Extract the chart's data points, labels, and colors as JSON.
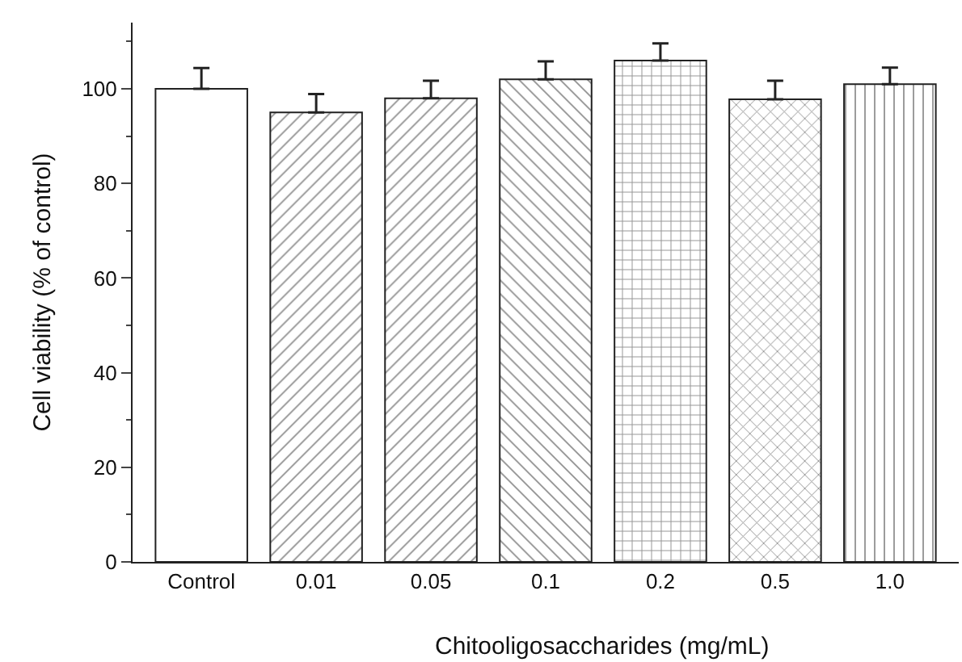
{
  "chart_data": {
    "type": "bar",
    "categories": [
      "Control",
      "0.01",
      "0.05",
      "0.1",
      "0.2",
      "0.5",
      "1.0"
    ],
    "values": [
      100,
      95,
      98,
      102,
      106,
      97.8,
      101
    ],
    "errors": [
      [
        100,
        104.4
      ],
      [
        95,
        98.9
      ],
      [
        98,
        101.7
      ],
      [
        102,
        105.8
      ],
      [
        106,
        109.6
      ],
      [
        97.8,
        101.7
      ],
      [
        101,
        104.5
      ]
    ],
    "color": "#222222",
    "xlabel": "Chitooligosaccharides (mg/mL)",
    "ylabel": "Cell viability (% of control)",
    "ylim": [
      0,
      114
    ],
    "yticks": [
      0,
      20,
      40,
      60,
      80,
      100
    ],
    "legend": false
  }
}
